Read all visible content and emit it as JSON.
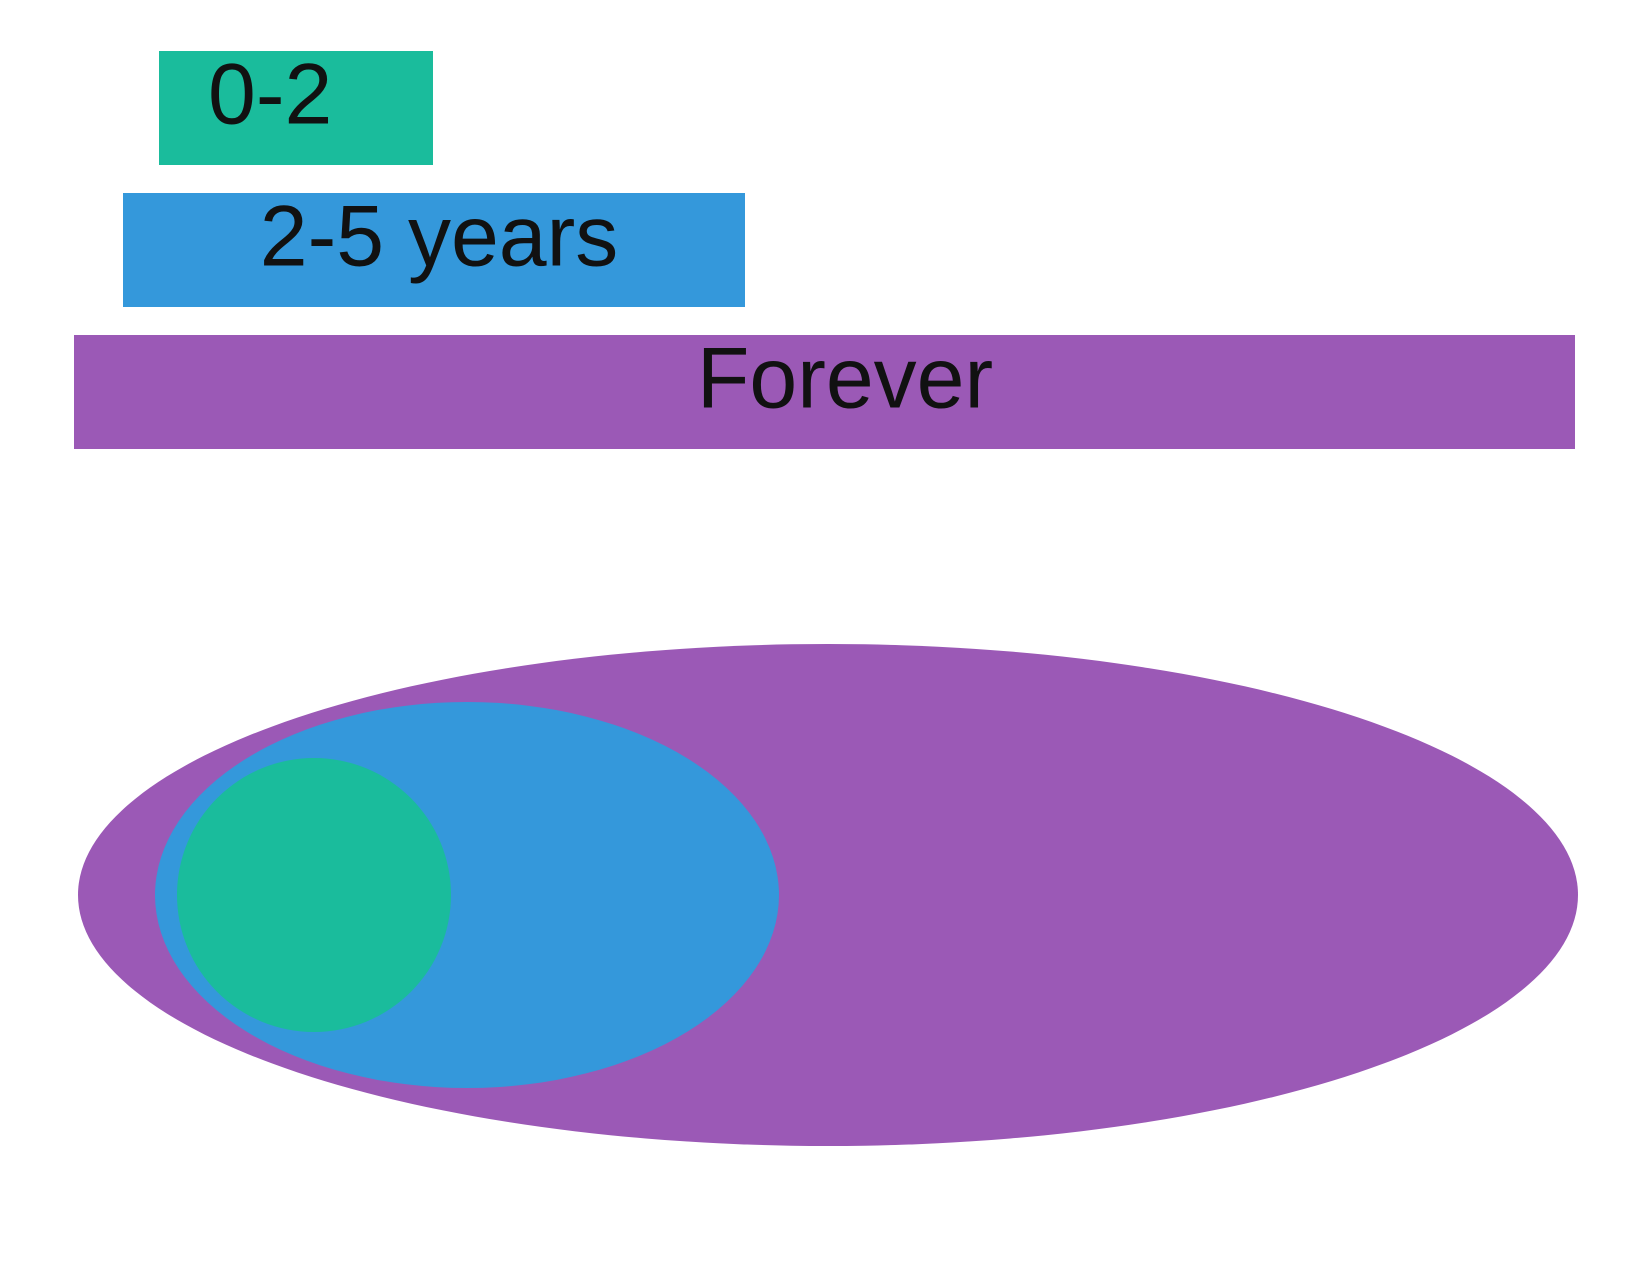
{
  "legend": [
    {
      "label": "0-2"
    },
    {
      "label": "2-5 years"
    },
    {
      "label": "Forever"
    }
  ]
}
